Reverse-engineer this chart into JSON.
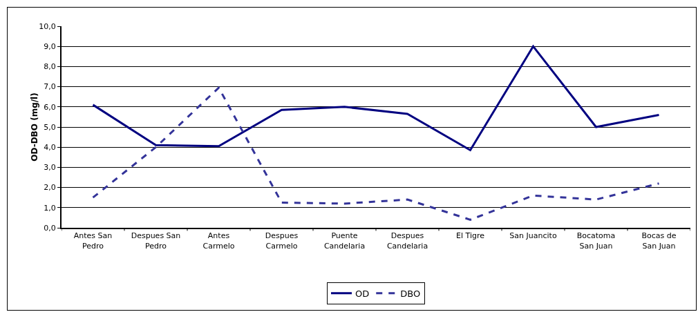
{
  "chart_data": {
    "type": "line",
    "ylabel": "OD-DBO (mg/l)",
    "categories": [
      "Antes San\nPedro",
      "Despues San\nPedro",
      "Antes\nCarmelo",
      "Despues\nCarmelo",
      "Puente\nCandelaria",
      "Despues\nCandelaria",
      "El Tigre",
      "San Juancito",
      "Bocatoma\nSan Juan",
      "Bocas de\nSan Juan"
    ],
    "series": [
      {
        "name": "OD",
        "color": "#000080",
        "line_style": "solid",
        "values": [
          6.1,
          4.1,
          4.05,
          5.85,
          6.0,
          5.65,
          3.85,
          9.0,
          5.0,
          5.6
        ]
      },
      {
        "name": "DBO",
        "color": "#333399",
        "line_style": "dashed",
        "values": [
          1.5,
          4.0,
          6.95,
          1.25,
          1.2,
          1.4,
          0.4,
          1.6,
          1.4,
          2.2
        ]
      }
    ],
    "ylim": [
      0,
      10
    ],
    "yticks": [
      {
        "value": 0,
        "label": "0,0"
      },
      {
        "value": 1,
        "label": "1,0"
      },
      {
        "value": 2,
        "label": "2,0"
      },
      {
        "value": 3,
        "label": "3,0"
      },
      {
        "value": 4,
        "label": "4,0"
      },
      {
        "value": 5,
        "label": "5,0"
      },
      {
        "value": 6,
        "label": "6,0"
      },
      {
        "value": 7,
        "label": "7,0"
      },
      {
        "value": 8,
        "label": "8,0"
      },
      {
        "value": 9,
        "label": "9,0"
      },
      {
        "value": 10,
        "label": "10,0"
      }
    ],
    "grid": "y",
    "legend": "bottom",
    "marker": "none"
  }
}
